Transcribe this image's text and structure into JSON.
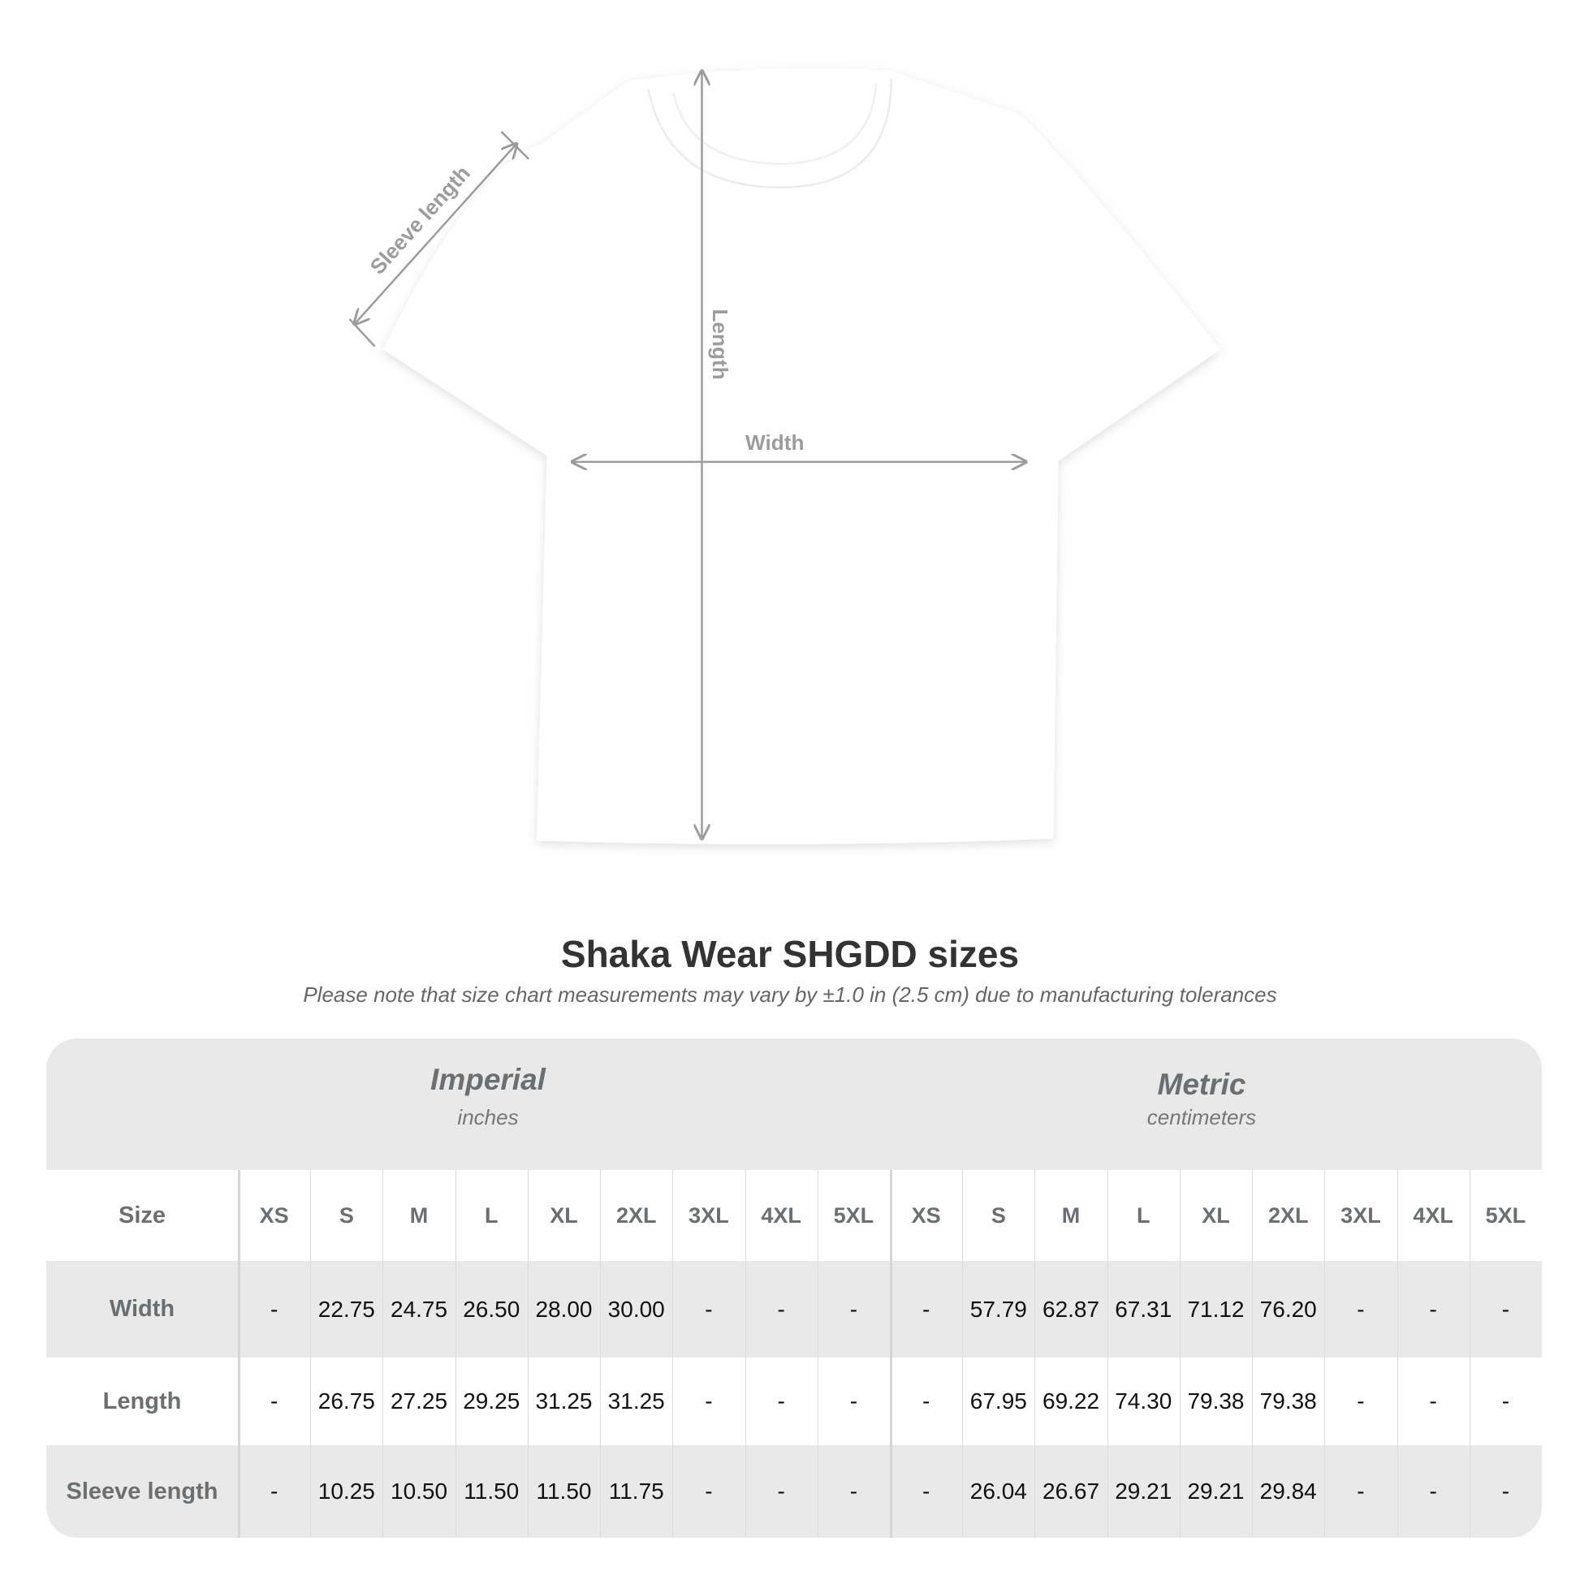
{
  "diagram": {
    "labels": {
      "sleeve": "Sleeve length",
      "length": "Length",
      "width": "Width"
    },
    "arrow_color": "#9c9c9c"
  },
  "title": "Shaka Wear SHGDD sizes",
  "subtitle": "Please note that size chart measurements may vary by ±1.0 in (2.5 cm) due to manufacturing tolerances",
  "table": {
    "imperial": {
      "title": "Imperial",
      "unit": "inches"
    },
    "metric": {
      "title": "Metric",
      "unit": "centimeters"
    },
    "size_label": "Size",
    "sizes": [
      "XS",
      "S",
      "M",
      "L",
      "XL",
      "2XL",
      "3XL",
      "4XL",
      "5XL"
    ],
    "rows": [
      {
        "label": "Width",
        "imperial": [
          "-",
          "22.75",
          "24.75",
          "26.50",
          "28.00",
          "30.00",
          "-",
          "-",
          "-"
        ],
        "metric": [
          "-",
          "57.79",
          "62.87",
          "67.31",
          "71.12",
          "76.20",
          "-",
          "-",
          "-"
        ]
      },
      {
        "label": "Length",
        "imperial": [
          "-",
          "26.75",
          "27.25",
          "29.25",
          "31.25",
          "31.25",
          "-",
          "-",
          "-"
        ],
        "metric": [
          "-",
          "67.95",
          "69.22",
          "74.30",
          "79.38",
          "79.38",
          "-",
          "-",
          "-"
        ]
      },
      {
        "label": "Sleeve length",
        "imperial": [
          "-",
          "10.25",
          "10.50",
          "11.50",
          "11.50",
          "11.75",
          "-",
          "-",
          "-"
        ],
        "metric": [
          "-",
          "26.04",
          "26.67",
          "29.21",
          "29.21",
          "29.84",
          "-",
          "-",
          "-"
        ]
      }
    ]
  }
}
